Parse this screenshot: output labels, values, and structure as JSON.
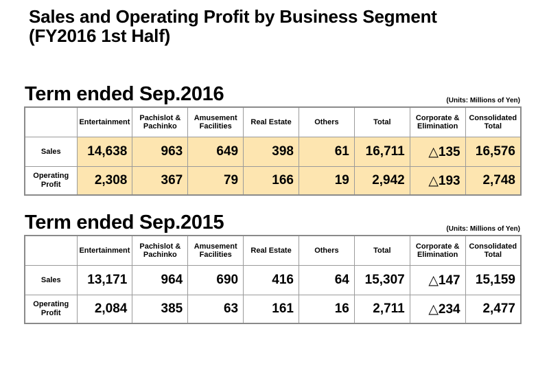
{
  "title": {
    "line1": "Sales and Operating Profit by Business Segment",
    "line2": "(FY2016 1st Half)"
  },
  "units_note": "(Units: Millions of Yen)",
  "columns": [
    "Entertainment",
    "Pachislot &\nPachinko",
    "Amusement\nFacilities",
    "Real Estate",
    "Others",
    "Total",
    "Corporate &\nElimination",
    "Consolidated\nTotal"
  ],
  "terms": [
    {
      "title": "Term ended Sep.2016",
      "rows": [
        {
          "label": "Sales",
          "values": [
            "14,638",
            "963",
            "649",
            "398",
            "61",
            "16,711",
            "△135",
            "16,576"
          ]
        },
        {
          "label": "Operating\nProfit",
          "values": [
            "2,308",
            "367",
            "79",
            "166",
            "19",
            "2,942",
            "△193",
            "2,748"
          ]
        }
      ]
    },
    {
      "title": "Term ended Sep.2015",
      "rows": [
        {
          "label": "Sales",
          "values": [
            "13,171",
            "964",
            "690",
            "416",
            "64",
            "15,307",
            "△147",
            "15,159"
          ]
        },
        {
          "label": "Operating\nProfit",
          "values": [
            "2,084",
            "385",
            "63",
            "161",
            "16",
            "2,711",
            "△234",
            "2,477"
          ]
        }
      ]
    }
  ]
}
